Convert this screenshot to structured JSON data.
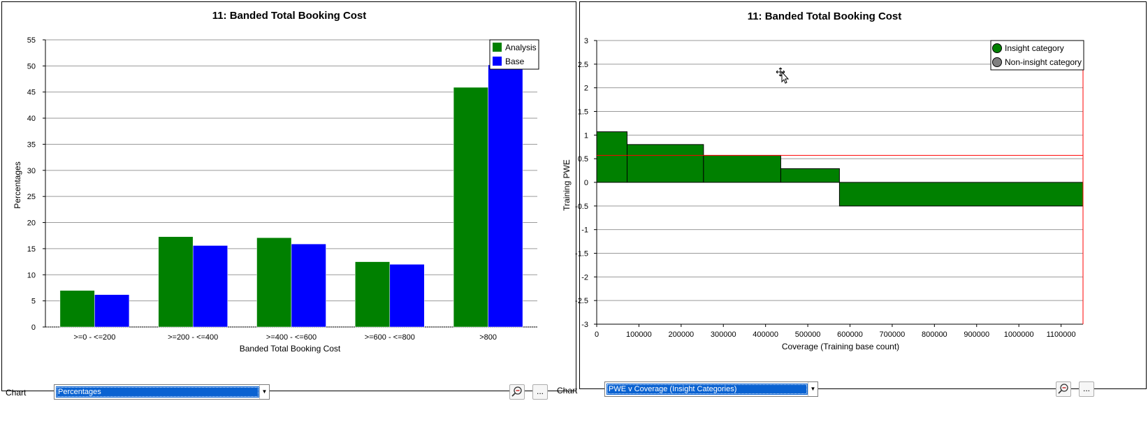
{
  "left_chart": {
    "title": "11: Banded Total Booking Cost",
    "chart_data": {
      "type": "bar",
      "title": "11: Banded Total Booking Cost",
      "xlabel": "Banded Total Booking Cost",
      "ylabel": "Percentages",
      "categories": [
        ">=0 - <=200",
        ">=200 - <=400",
        ">=400 - <=600",
        ">=600 - <=800",
        ">800"
      ],
      "series": [
        {
          "name": "Analysis",
          "color": "#008000",
          "values": [
            7.0,
            17.3,
            17.1,
            12.5,
            45.9
          ]
        },
        {
          "name": "Base",
          "color": "#0000ff",
          "values": [
            6.2,
            15.6,
            15.9,
            12.0,
            50.2
          ]
        }
      ],
      "ylim": [
        0,
        55
      ],
      "yticks": [
        "0",
        "5",
        "10",
        "15",
        "20",
        "25",
        "30",
        "35",
        "40",
        "45",
        "50",
        "55"
      ],
      "grid": true,
      "legend_position": "top-right"
    }
  },
  "right_chart": {
    "title": "11: Banded Total Booking Cost",
    "chart_data": {
      "type": "bar",
      "title": "11: Banded Total Booking Cost",
      "xlabel": "Coverage (Training base count)",
      "ylabel": "Training PWE",
      "segments": [
        {
          "x0": 0,
          "x1": 72000,
          "value": 1.07
        },
        {
          "x0": 72000,
          "x1": 253000,
          "value": 0.8
        },
        {
          "x0": 253000,
          "x1": 436000,
          "value": 0.57
        },
        {
          "x0": 436000,
          "x1": 575000,
          "value": 0.29
        },
        {
          "x0": 575000,
          "x1": 1152000,
          "value": -0.5
        }
      ],
      "reference_line": 0.57,
      "xlim": [
        0,
        1152000
      ],
      "ylim": [
        -3,
        3
      ],
      "xticks": [
        "0",
        "100000",
        "200000",
        "300000",
        "400000",
        "500000",
        "600000",
        "700000",
        "800000",
        "900000",
        "1000000",
        "1100000"
      ],
      "yticks": [
        "-3",
        "-2.5",
        "-2",
        "-1.5",
        "-1",
        "-0.5",
        "0",
        "0.5",
        "1",
        "1.5",
        "2",
        "2.5",
        "3"
      ],
      "grid": true,
      "legend": [
        {
          "name": "Insight category",
          "color": "#008000"
        },
        {
          "name": "Non-insight category",
          "color": "#808080"
        }
      ],
      "legend_position": "top-right",
      "colors": {
        "bars": "#008000",
        "reference": "#ff0000"
      }
    }
  },
  "left_controls": {
    "label": "Chart",
    "selected": "Percentages",
    "zoom_icon": "zoom-icon",
    "more_label": "..."
  },
  "right_controls": {
    "label": "Chart",
    "selected": "PWE v Coverage (Insight Categories)",
    "zoom_icon": "zoom-icon",
    "more_label": "..."
  }
}
